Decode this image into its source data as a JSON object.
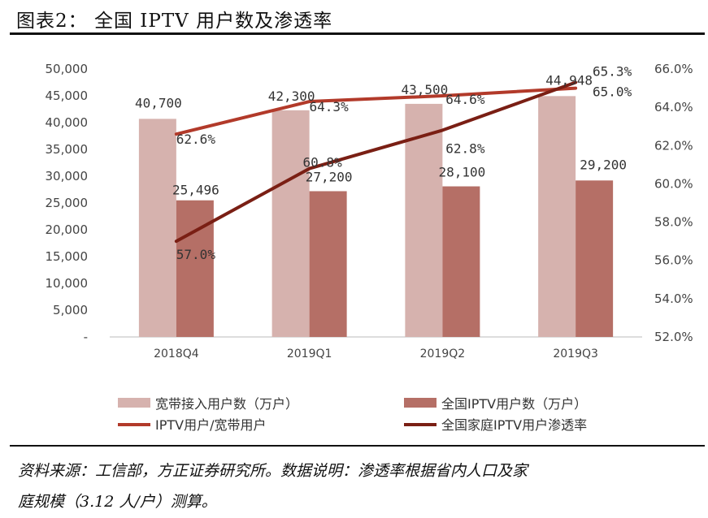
{
  "title": "图表2：  全国 IPTV 用户数及渗透率",
  "source_line1": "资料来源：工信部，方正证券研究所。数据说明：渗透率根据省内人口及家",
  "source_line2": "庭规模（3.12 人/户）测算。",
  "chart_data": {
    "type": "bar",
    "categories": [
      "2018Q4",
      "2019Q1",
      "2019Q2",
      "2019Q3"
    ],
    "y_left": {
      "ticks": [
        "-",
        "5,000",
        "10,000",
        "15,000",
        "20,000",
        "25,000",
        "30,000",
        "35,000",
        "40,000",
        "45,000",
        "50,000"
      ],
      "ylim": [
        0,
        50000
      ]
    },
    "y_right": {
      "ticks": [
        "52.0%",
        "54.0%",
        "56.0%",
        "58.0%",
        "60.0%",
        "62.0%",
        "64.0%",
        "66.0%"
      ],
      "ylim": [
        52,
        66
      ]
    },
    "bars": [
      {
        "name": "宽带接入用户数（万户）",
        "color": "#d6b2ae",
        "values": [
          40700,
          42300,
          43500,
          44948
        ],
        "labels": [
          "40,700",
          "42,300",
          "43,500",
          "44,948"
        ]
      },
      {
        "name": "全国IPTV用户数（万户）",
        "color": "#b56f66",
        "values": [
          25496,
          27200,
          28100,
          29200
        ],
        "labels": [
          "25,496",
          "27,200",
          "28,100",
          "29,200"
        ]
      }
    ],
    "lines": [
      {
        "name": "IPTV用户/宽带用户",
        "color": "#b23a2a",
        "axis": "right",
        "values": [
          62.6,
          64.3,
          64.6,
          65.0
        ],
        "labels": [
          "62.6%",
          "64.3%",
          "64.6%",
          "65.0%"
        ]
      },
      {
        "name": "全国家庭IPTV用户渗透率",
        "color": "#7a1f14",
        "axis": "right",
        "values": [
          57.0,
          60.8,
          62.8,
          65.3
        ],
        "labels": [
          "57.0%",
          "60.8%",
          "62.8%",
          "65.3%"
        ]
      }
    ]
  }
}
